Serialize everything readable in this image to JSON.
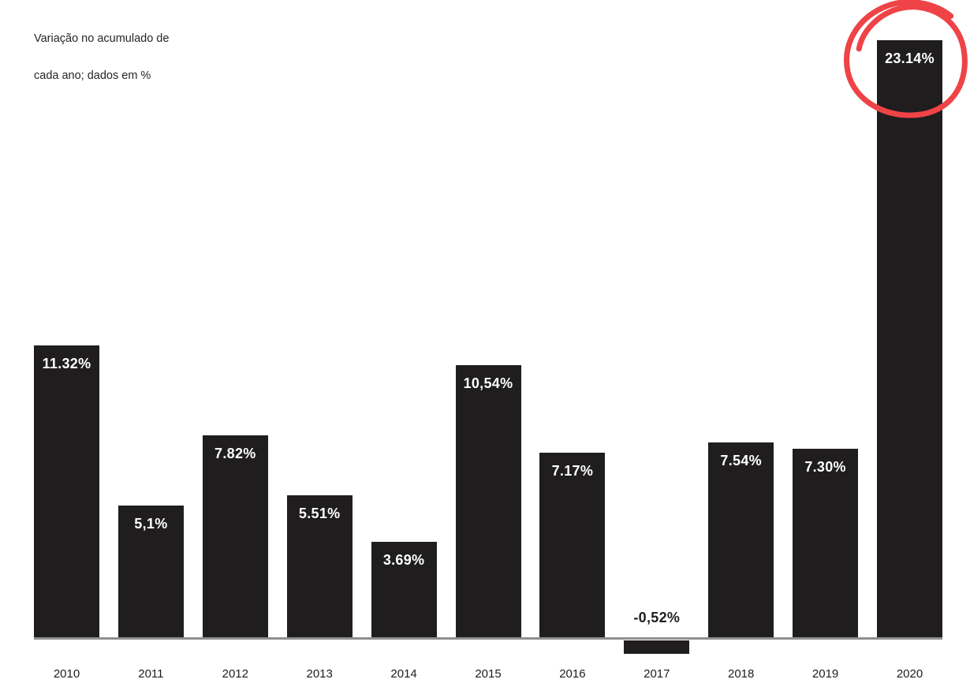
{
  "title": {
    "line1": "Variação no acumulado de",
    "line2": "cada ano; dados em %"
  },
  "chart_data": {
    "type": "bar",
    "title": "Variação no acumulado de cada ano; dados em %",
    "xlabel": "",
    "ylabel": "",
    "categories": [
      "2010",
      "2011",
      "2012",
      "2013",
      "2014",
      "2015",
      "2016",
      "2017",
      "2018",
      "2019",
      "2020"
    ],
    "values": [
      11.32,
      5.1,
      7.82,
      5.51,
      3.69,
      10.54,
      7.17,
      -0.52,
      7.54,
      7.3,
      23.14
    ],
    "labels": [
      "11.32%",
      "5,1%",
      "7.82%",
      "5.51%",
      "3.69%",
      "10,54%",
      "7.17%",
      "-0,52%",
      "7.54%",
      "7.30%",
      "23.14%"
    ],
    "ylim": [
      -1,
      24
    ],
    "grid": false,
    "legend": false,
    "bar_color": "#1f1d1d",
    "value_label_color": "#ffffff",
    "negative_label_color": "#1f1d1d",
    "baseline_color": "#8f8f8f",
    "annotation": {
      "type": "hand-drawn-circle",
      "target_category": "2020",
      "color": "#ee4347"
    }
  }
}
